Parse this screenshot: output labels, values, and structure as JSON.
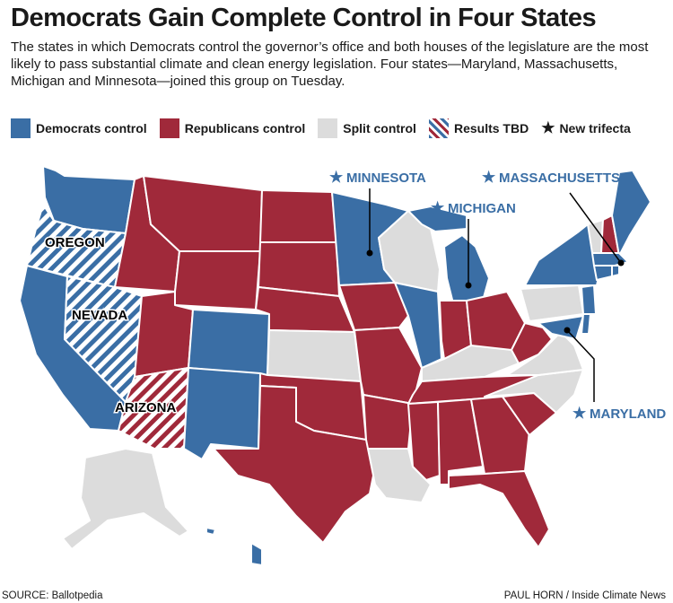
{
  "title": "Democrats Gain Complete Control in Four States",
  "subtitle": "The states in which Democrats control the governor’s office and both houses of the legislature are the most likely to pass substantial climate and clean energy legislation. Four states—Maryland, Massachusetts, Michigan and Minnesota—joined this group on Tuesday.",
  "legend": [
    {
      "label": "Democrats control",
      "color": "#3a6ea5"
    },
    {
      "label": "Republicans control",
      "color": "#a0293a"
    },
    {
      "label": "Split control",
      "color": "#dcdcdc"
    },
    {
      "label": "Results TBD",
      "pattern": "blue-white-red-stripes"
    },
    {
      "label": "New trifecta",
      "icon": "star-icon"
    }
  ],
  "colors": {
    "dem": "#3a6ea5",
    "rep": "#a0293a",
    "split": "#dcdcdc",
    "label_blue": "#3a6ea5"
  },
  "map_labels": {
    "minnesota": "MINNESOTA",
    "michigan": "MICHIGAN",
    "massachusetts": "MASSACHUSETTS",
    "maryland": "MARYLAND",
    "oregon": "OREGON",
    "nevada": "NEVADA",
    "arizona": "ARIZONA"
  },
  "source": "SOURCE: Ballotpedia",
  "credit": "PAUL HORN / Inside Climate News"
}
